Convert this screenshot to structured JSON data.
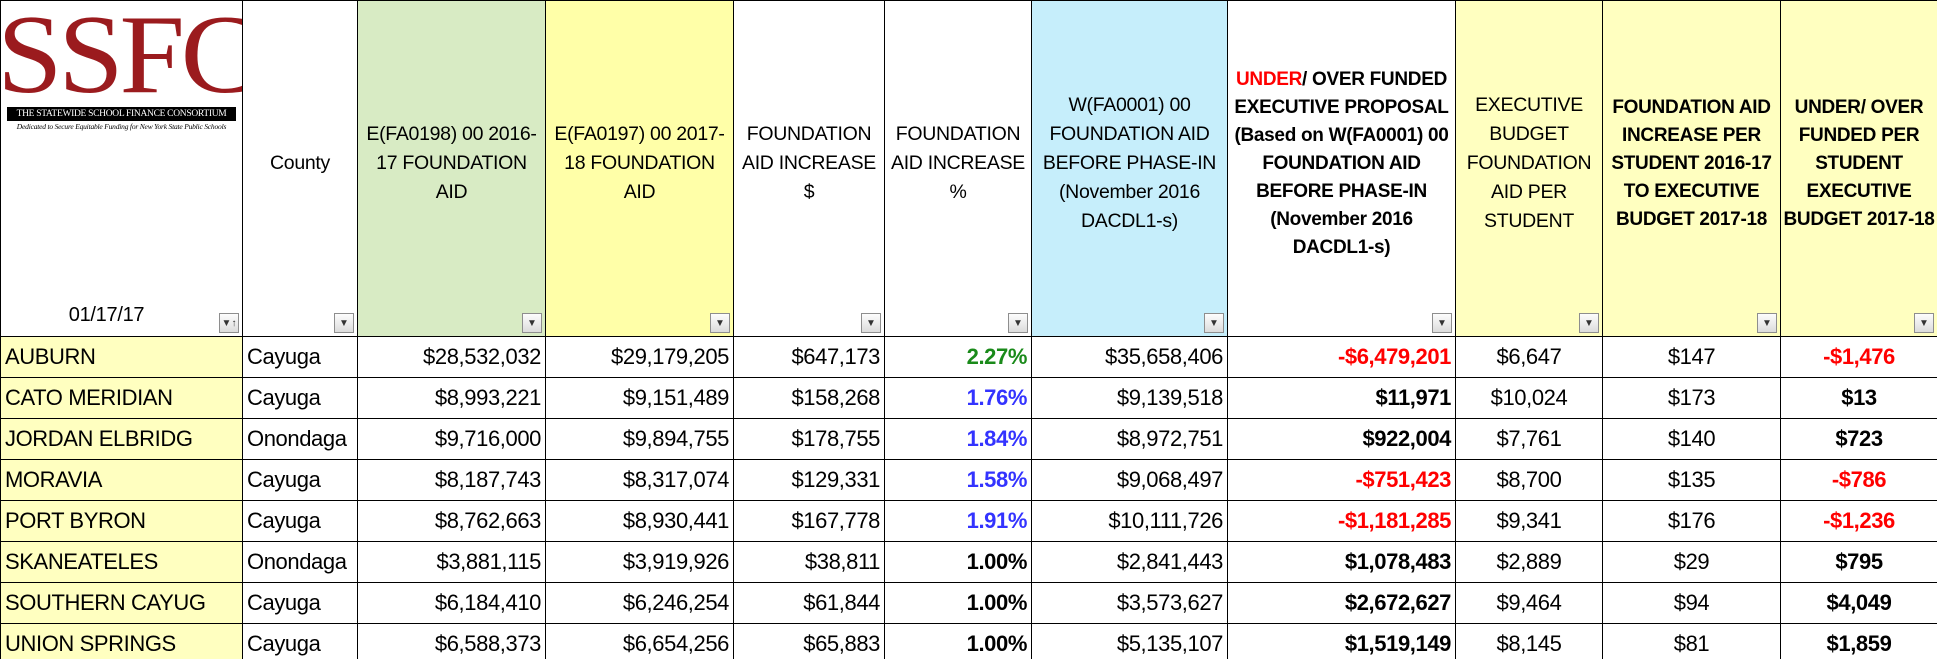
{
  "logo": {
    "title": "SSFC",
    "name": "THE STATEWIDE SCHOOL FINANCE CONSORTIUM",
    "tagline": "Dedicated to Secure Equitable Funding for New York State Public Schools"
  },
  "date": "01/17/17",
  "headers": [
    "County",
    "E(FA0198) 00 2016-17 FOUNDATION AID",
    "E(FA0197) 00 2017-18 FOUNDATION AID",
    "FOUNDATION AID INCREASE $",
    "FOUNDATION AID INCREASE %",
    "W(FA0001) 00 FOUNDATION AID BEFORE PHASE-IN (November 2016 DACDL1-s)",
    {
      "highlight": "UNDER",
      "text": "/ OVER FUNDED EXECUTIVE PROPOSAL (Based on W(FA0001) 00 FOUNDATION AID BEFORE PHASE-IN (November 2016 DACDL1-s)"
    },
    "EXECUTIVE BUDGET FOUNDATION AID PER STUDENT",
    "FOUNDATION AID INCREASE PER STUDENT 2016-17 TO EXECUTIVE BUDGET 2017-18",
    "UNDER/ OVER FUNDED PER STUDENT EXECUTIVE BUDGET 2017-18"
  ],
  "header_colors": [
    null,
    "#d8ebc4",
    "#ffffa8",
    null,
    null,
    "#c6eefb",
    null,
    "#ffffc0",
    "#ffffc0",
    "#ffffc0"
  ],
  "rows": [
    [
      "AUBURN",
      "Cayuga",
      "$28,532,032",
      "$29,179,205",
      "$647,173",
      "2.27%",
      "$35,658,406",
      "-$6,479,201",
      "$6,647",
      "$147",
      "-$1,476"
    ],
    [
      "CATO MERIDIAN",
      "Cayuga",
      "$8,993,221",
      "$9,151,489",
      "$158,268",
      "1.76%",
      "$9,139,518",
      "$11,971",
      "$10,024",
      "$173",
      "$13"
    ],
    [
      "JORDAN ELBRIDG",
      "Onondaga",
      "$9,716,000",
      "$9,894,755",
      "$178,755",
      "1.84%",
      "$8,972,751",
      "$922,004",
      "$7,761",
      "$140",
      "$723"
    ],
    [
      "MORAVIA",
      "Cayuga",
      "$8,187,743",
      "$8,317,074",
      "$129,331",
      "1.58%",
      "$9,068,497",
      "-$751,423",
      "$8,700",
      "$135",
      "-$786"
    ],
    [
      "PORT BYRON",
      "Cayuga",
      "$8,762,663",
      "$8,930,441",
      "$167,778",
      "1.91%",
      "$10,111,726",
      "-$1,181,285",
      "$9,341",
      "$176",
      "-$1,236"
    ],
    [
      "SKANEATELES",
      "Onondaga",
      "$3,881,115",
      "$3,919,926",
      "$38,811",
      "1.00%",
      "$2,841,443",
      "$1,078,483",
      "$2,889",
      "$29",
      "$795"
    ],
    [
      "SOUTHERN CAYUG",
      "Cayuga",
      "$6,184,410",
      "$6,246,254",
      "$61,844",
      "1.00%",
      "$3,573,627",
      "$2,672,627",
      "$9,464",
      "$94",
      "$4,049"
    ],
    [
      "UNION SPRINGS",
      "Cayuga",
      "$6,588,373",
      "$6,654,256",
      "$65,883",
      "1.00%",
      "$5,135,107",
      "$1,519,149",
      "$8,145",
      "$81",
      "$1,859"
    ]
  ],
  "pct_colors": [
    "#1a8a1a",
    "#3333ff",
    "#3333ff",
    "#3333ff",
    "#3333ff",
    "#000000",
    "#000000",
    "#000000"
  ]
}
